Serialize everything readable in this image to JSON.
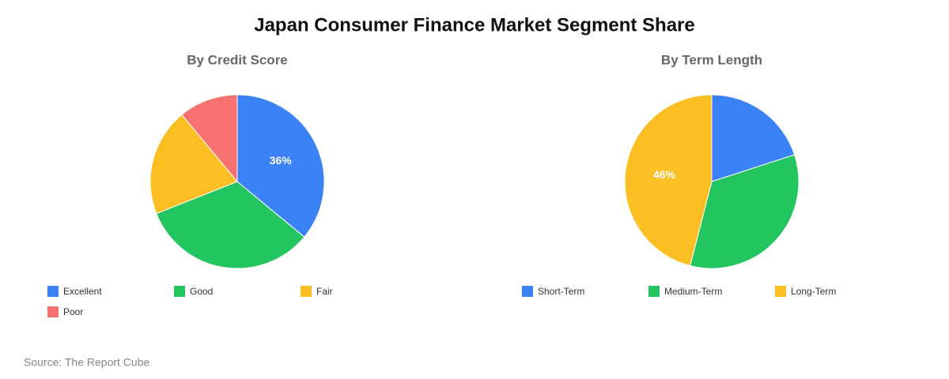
{
  "title": "Japan Consumer Finance Market Segment Share",
  "source": "Source: The Report Cube",
  "chart_data": [
    {
      "type": "pie",
      "title": "By Credit Score",
      "categories": [
        "Excellent",
        "Good",
        "Fair",
        "Poor"
      ],
      "values": [
        36,
        33,
        20,
        11
      ],
      "value_labels": [
        "36%",
        null,
        null,
        null
      ],
      "colors": [
        "#3b82f6",
        "#22c55e",
        "#fbbf24",
        "#f87171"
      ]
    },
    {
      "type": "pie",
      "title": "By Term Length",
      "categories": [
        "Short-Term",
        "Medium-Term",
        "Long-Term"
      ],
      "values": [
        20,
        34,
        46
      ],
      "value_labels": [
        null,
        null,
        "46%"
      ],
      "colors": [
        "#3b82f6",
        "#22c55e",
        "#fbbf24"
      ]
    }
  ]
}
